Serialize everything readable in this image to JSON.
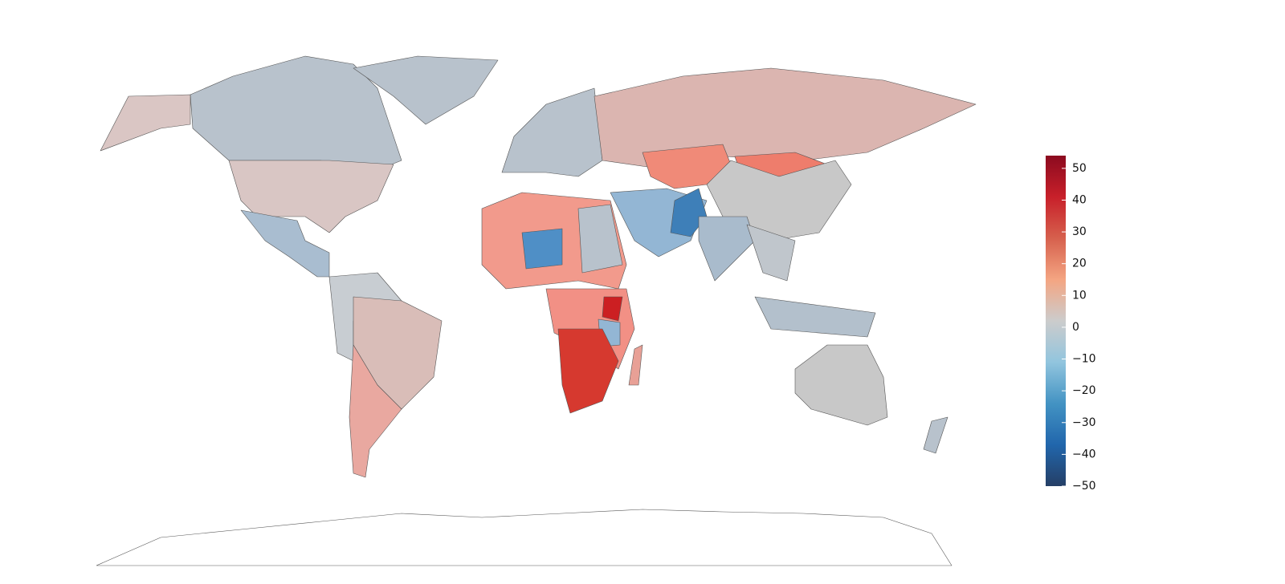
{
  "chart_data": {
    "type": "choropleth",
    "colorbar": {
      "lim": [
        -50,
        54
      ],
      "ticks": [
        50,
        40,
        30,
        20,
        10,
        0,
        {
          "value": -10,
          "label": "−10"
        },
        {
          "value": -20,
          "label": "−20"
        },
        {
          "value": -30,
          "label": "−30"
        },
        {
          "value": -40,
          "label": "−40"
        },
        {
          "value": -50,
          "label": "−50"
        }
      ],
      "colors": [
        "#253f66",
        "#2166ac",
        "#4393c3",
        "#92c5de",
        "#cccccc",
        "#f4a582",
        "#d6604d",
        "#c8202a",
        "#8b0a1f"
      ]
    }
  }
}
